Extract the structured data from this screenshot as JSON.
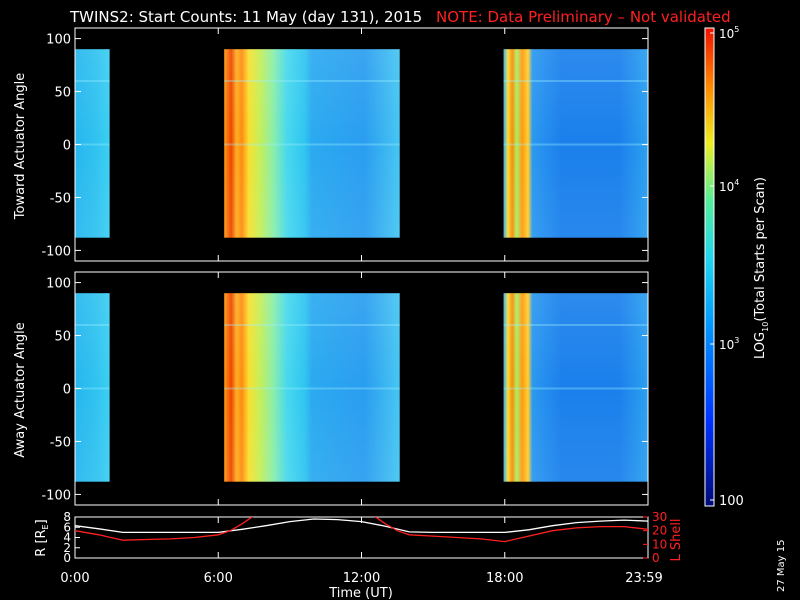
{
  "header": {
    "title": "TWINS2: Start Counts: 11 May (day 131), 2015",
    "note": "NOTE: Data Preliminary – Not validated",
    "note_color": "#ff2020"
  },
  "footer": {
    "date_stamp": "27 May 15"
  },
  "chart_data": [
    {
      "type": "heatmap",
      "panel": "toward",
      "ylabel": "Toward Actuator Angle",
      "ylim": [
        -110,
        110
      ],
      "yticks": [
        100,
        50,
        0,
        -50,
        -100
      ],
      "xlim": [
        0,
        24
      ],
      "data_y_range": [
        -88,
        90
      ],
      "data_blocks_hours": [
        [
          0.0,
          1.45
        ],
        [
          6.25,
          13.6
        ],
        [
          17.95,
          24.0
        ]
      ],
      "colorscale": "rainbow",
      "note": "color encodes log10 total starts per scan"
    },
    {
      "type": "heatmap",
      "panel": "away",
      "ylabel": "Away Actuator Angle",
      "ylim": [
        -110,
        110
      ],
      "yticks": [
        100,
        50,
        0,
        -50,
        -100
      ],
      "xlim": [
        0,
        24
      ],
      "data_y_range": [
        -88,
        90
      ],
      "data_blocks_hours": [
        [
          0.0,
          1.45
        ],
        [
          6.25,
          13.6
        ],
        [
          17.95,
          24.0
        ]
      ],
      "colorscale": "rainbow"
    },
    {
      "type": "line",
      "panel": "orbit",
      "xlabel": "Time (UT)",
      "xticks": [
        "0:00",
        "6:00",
        "12:00",
        "18:00",
        "23:59"
      ],
      "xlim": [
        0,
        24
      ],
      "ylabel_left": "R [R",
      "ylabel_left_sub": "E",
      "ylabel_left_end": "]",
      "ylim_left": [
        0,
        8
      ],
      "yticks_left": [
        0,
        2,
        4,
        6,
        8
      ],
      "ylabel_right": "L Shell",
      "ylim_right": [
        0,
        30
      ],
      "yticks_right": [
        0,
        10,
        20,
        30
      ],
      "series": [
        {
          "color": "#ffffff",
          "axis": "left",
          "x": [
            0,
            1,
            2,
            3,
            4,
            5,
            6,
            7,
            8,
            9,
            10,
            11,
            12,
            13,
            14,
            15,
            16,
            17,
            18,
            19,
            20,
            21,
            22,
            23,
            24
          ],
          "y": [
            6.3,
            5.7,
            5.0,
            5.0,
            5.0,
            5.0,
            5.0,
            5.6,
            6.3,
            7.1,
            7.6,
            7.5,
            7.1,
            6.2,
            5.1,
            5.0,
            5.0,
            5.0,
            5.0,
            5.5,
            6.3,
            6.9,
            7.2,
            7.4,
            7.2
          ]
        },
        {
          "color": "#ff2020",
          "axis": "right",
          "x": [
            0,
            1,
            2,
            3,
            4,
            5,
            6,
            6.5,
            7,
            7.5,
            12.5,
            13,
            13.5,
            14,
            15,
            16,
            17,
            18,
            19,
            20,
            21,
            22,
            23,
            24
          ],
          "y": [
            20,
            17,
            13,
            13.5,
            14,
            15,
            17,
            20,
            25,
            31,
            31,
            25,
            20,
            17,
            16,
            15,
            14,
            12,
            16,
            20,
            22,
            23,
            23,
            21
          ]
        }
      ]
    }
  ],
  "colorbar": {
    "label_prefix": "LOG",
    "label_sub": "10",
    "label_rest": "(Total Starts per Scan)",
    "tick_100": "100",
    "tick_1e3_base": "10",
    "tick_1e3_exp": "3",
    "tick_1e4_base": "10",
    "tick_1e4_exp": "4",
    "tick_1e5_base": "10",
    "tick_1e5_exp": "5",
    "range": [
      100,
      100000
    ]
  }
}
